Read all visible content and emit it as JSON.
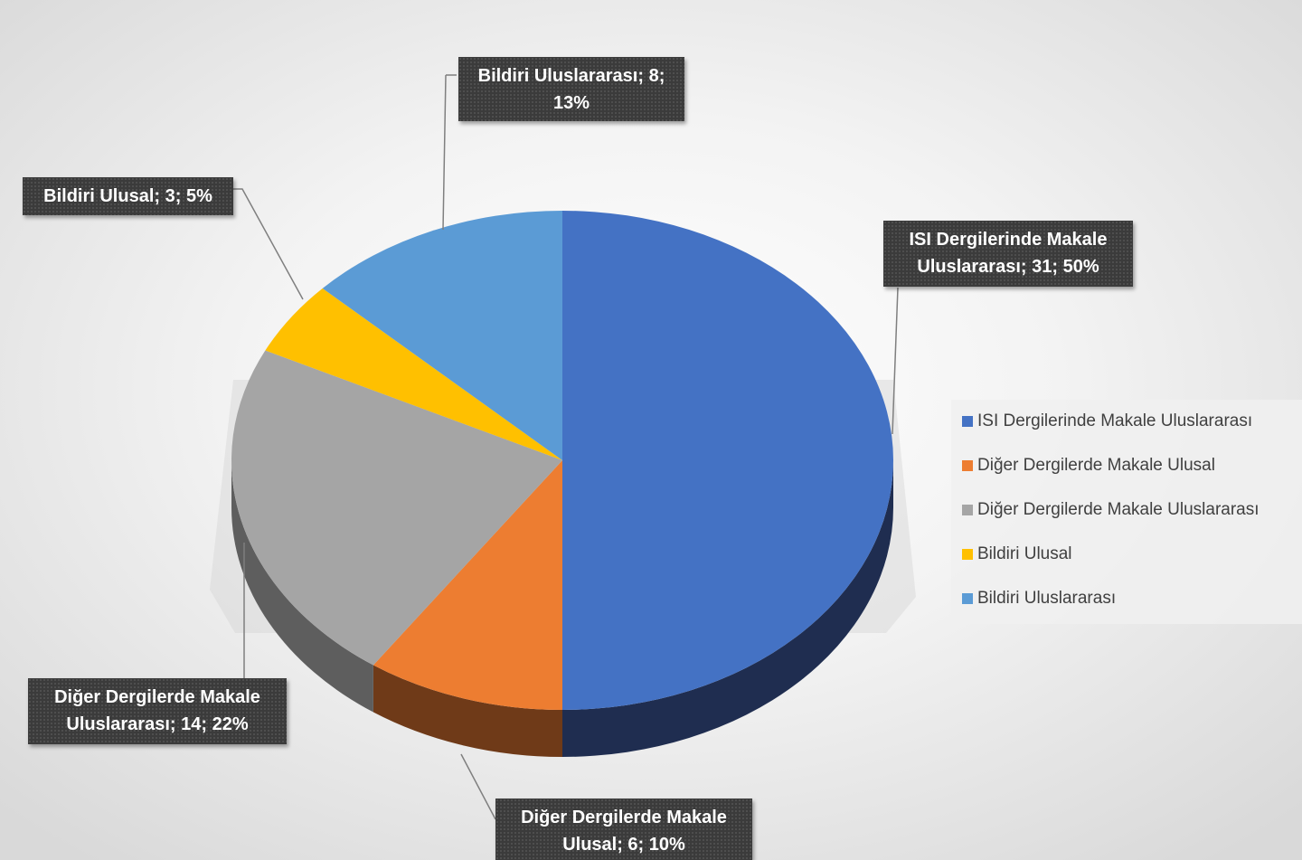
{
  "chart_data": {
    "type": "pie",
    "title": "",
    "style": "3d-exploded-perspective",
    "slices": [
      {
        "name": "ISI Dergilerinde Makale Uluslararası",
        "value": 31,
        "percent": "50%",
        "label_line1": "ISI Dergilerinde Makale",
        "label_line2": "Uluslararası; 31; 50%",
        "color": "#4472C4",
        "side_color": "#1F2D50"
      },
      {
        "name": "Diğer Dergilerde Makale Ulusal",
        "value": 6,
        "percent": "10%",
        "label_line1": "Diğer Dergilerde Makale",
        "label_line2": "Ulusal; 6; 10%",
        "color": "#ED7D31",
        "side_color": "#6F3A18"
      },
      {
        "name": "Diğer Dergilerde Makale Uluslararası",
        "value": 14,
        "percent": "22%",
        "label_line1": "Diğer Dergilerde Makale",
        "label_line2": "Uluslararası; 14; 22%",
        "color": "#A5A5A5",
        "side_color": "#5E5E5E"
      },
      {
        "name": "Bildiri Ulusal",
        "value": 3,
        "percent": "5%",
        "label_line1": "Bildiri Ulusal; 3; 5%",
        "label_line2": "",
        "color": "#FFC000",
        "side_color": "#806000"
      },
      {
        "name": "Bildiri Uluslararası",
        "value": 8,
        "percent": "13%",
        "label_line1": "Bildiri Uluslararası; 8;",
        "label_line2": "13%",
        "color": "#5B9BD5",
        "side_color": "#2E4E6B"
      }
    ],
    "legend_position": "right"
  }
}
